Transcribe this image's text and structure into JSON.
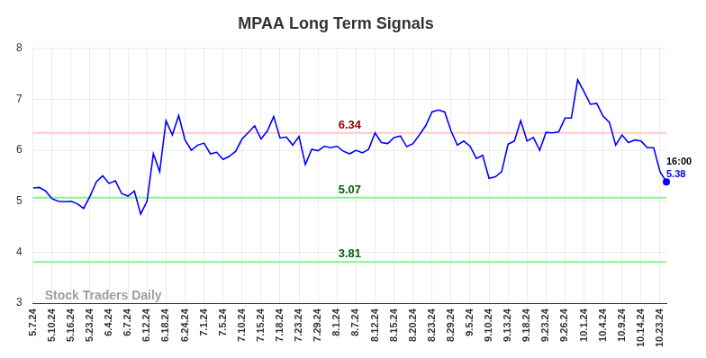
{
  "chart_data": {
    "type": "line",
    "title": "MPAA Long Term Signals",
    "categories": [
      "5.7.24",
      null,
      null,
      "5.10.24",
      null,
      null,
      "5.16.24",
      null,
      null,
      "5.23.24",
      null,
      null,
      "6.4.24",
      null,
      null,
      "6.7.24",
      null,
      null,
      "6.12.24",
      null,
      null,
      "6.18.24",
      null,
      null,
      "6.24.24",
      null,
      null,
      "7.1.24",
      null,
      null,
      "7.5.24",
      null,
      null,
      "7.10.24",
      null,
      null,
      "7.15.24",
      null,
      null,
      "7.18.24",
      null,
      null,
      "7.23.24",
      null,
      null,
      "7.29.24",
      null,
      null,
      "8.1.24",
      null,
      null,
      "8.7.24",
      null,
      null,
      "8.12.24",
      null,
      null,
      "8.15.24",
      null,
      null,
      "8.20.24",
      null,
      null,
      "8.23.24",
      null,
      null,
      "8.29.24",
      null,
      null,
      "9.5.24",
      null,
      null,
      "9.10.24",
      null,
      null,
      "9.13.24",
      null,
      null,
      "9.18.24",
      null,
      null,
      "9.23.24",
      null,
      null,
      "9.26.24",
      null,
      null,
      "10.1.24",
      null,
      null,
      "10.4.24",
      null,
      null,
      "10.9.24",
      null,
      null,
      "10.14.24",
      null,
      null,
      "10.23.24",
      null
    ],
    "values": [
      5.26,
      5.27,
      5.2,
      5.05,
      5.0,
      4.99,
      5.0,
      4.95,
      4.86,
      5.1,
      5.38,
      5.5,
      5.35,
      5.4,
      5.15,
      5.1,
      5.2,
      4.75,
      5.0,
      5.93,
      5.58,
      6.58,
      6.3,
      6.68,
      6.2,
      6.0,
      6.1,
      6.14,
      5.93,
      5.96,
      5.82,
      5.88,
      5.98,
      6.22,
      6.35,
      6.48,
      6.22,
      6.38,
      6.66,
      6.24,
      6.26,
      6.1,
      6.27,
      5.72,
      6.02,
      5.99,
      6.08,
      6.05,
      6.08,
      5.98,
      5.93,
      6.0,
      5.95,
      6.02,
      6.34,
      6.15,
      6.13,
      6.25,
      6.28,
      6.07,
      6.13,
      6.3,
      6.48,
      6.75,
      6.79,
      6.75,
      6.38,
      6.1,
      6.18,
      6.08,
      5.84,
      5.9,
      5.45,
      5.48,
      5.58,
      6.12,
      6.18,
      6.58,
      6.18,
      6.25,
      6.0,
      6.35,
      6.34,
      6.36,
      6.63,
      6.63,
      7.38,
      7.15,
      6.9,
      6.92,
      6.67,
      6.55,
      6.1,
      6.3,
      6.15,
      6.2,
      6.18,
      6.05,
      6.05,
      5.58,
      5.38
    ],
    "color": "#0000ff",
    "ylim": [
      3,
      8
    ],
    "yticks": [
      3,
      4,
      5,
      6,
      7,
      8
    ],
    "grid": true,
    "levels": [
      {
        "value": 6.34,
        "label": "6.34",
        "color": "#8b0000",
        "line_color": "#ffc8c8"
      },
      {
        "value": 5.07,
        "label": "5.07",
        "color": "#006400",
        "line_color": "#90ee90"
      },
      {
        "value": 3.81,
        "label": "3.81",
        "color": "#006400",
        "line_color": "#90ee90"
      }
    ],
    "last_point": {
      "label": "16:00",
      "value": 5.38,
      "color": "#0000ff"
    },
    "watermark": "Stock Traders Daily"
  }
}
